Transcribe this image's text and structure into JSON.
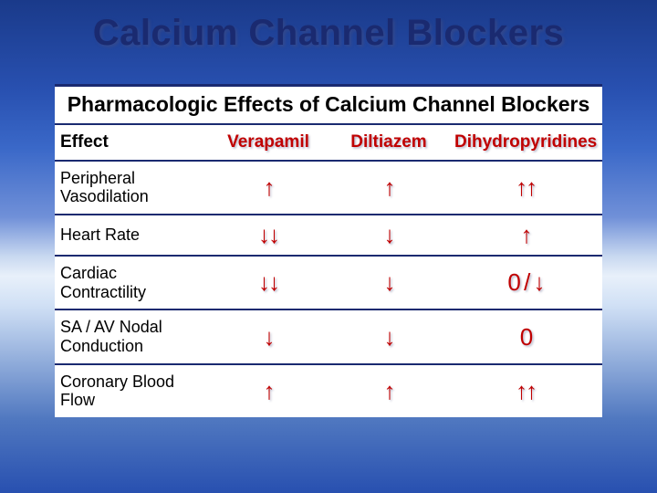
{
  "title": "Calcium Channel Blockers",
  "table": {
    "caption": "Pharmacologic Effects of Calcium Channel Blockers",
    "header": {
      "effect": "Effect",
      "col1": "Verapamil",
      "col2": "Diltiazem",
      "col3": "Dihydropyridines"
    },
    "rows": [
      {
        "label": "Peripheral Vasodilation",
        "v": "↑",
        "d": "↑",
        "dh": "↑↑"
      },
      {
        "label": "Heart Rate",
        "v": "↓↓",
        "d": "↓",
        "dh": "↑"
      },
      {
        "label": "Cardiac Contractility",
        "v": "↓↓",
        "d": "↓",
        "dh": "0 / ↓"
      },
      {
        "label": "SA / AV Nodal Conduction",
        "v": "↓",
        "d": "↓",
        "dh": "0"
      },
      {
        "label": "Coronary Blood Flow",
        "v": "↑",
        "d": "↑",
        "dh": "↑↑"
      }
    ]
  },
  "colors": {
    "accent_red": "#c00000",
    "border_navy": "#1a2a70",
    "table_bg": "#ffffff"
  }
}
